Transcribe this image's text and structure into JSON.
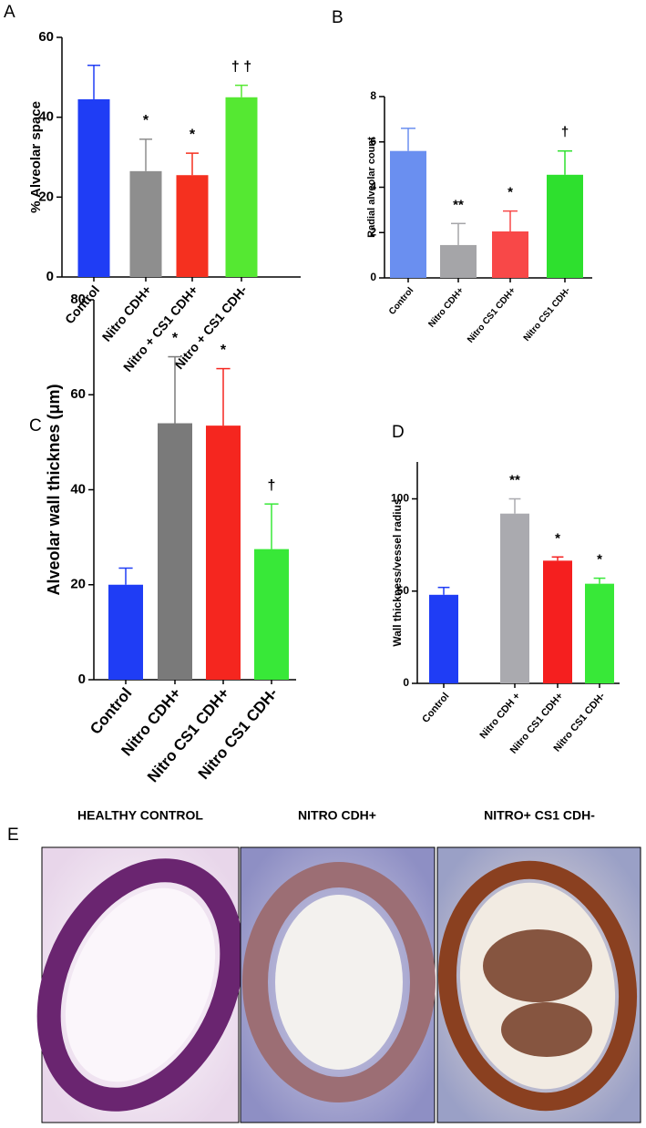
{
  "chart_data": [
    {
      "type": "bar",
      "panel": "A",
      "ylabel": "% Alveolar space",
      "categories": [
        "Control",
        "Nitro CDH+",
        "Nitro + CS1 CDH+",
        "Nitro + CS1 CDH-"
      ],
      "values": [
        44.5,
        26.5,
        25.5,
        45
      ],
      "errors": [
        8.5,
        8,
        5.5,
        3
      ],
      "annotations": [
        null,
        "*",
        "*",
        "† †"
      ],
      "colors": [
        "#1f3df5",
        "#8e8e8e",
        "#f5301f",
        "#55e832"
      ],
      "ylim": [
        0,
        60
      ],
      "yticks": [
        0,
        20,
        40,
        60
      ]
    },
    {
      "type": "bar",
      "panel": "B",
      "ylabel": "Radial alveolar count",
      "categories": [
        "Control",
        "Nitro CDH+",
        "Nitro CS1 CDH+",
        "Nitro CS1 CDH-"
      ],
      "values": [
        5.6,
        1.45,
        2.05,
        4.55
      ],
      "errors": [
        1.0,
        0.95,
        0.9,
        1.05
      ],
      "annotations": [
        null,
        "**",
        "*",
        "†"
      ],
      "colors": [
        "#6a8ff0",
        "#a5a5a8",
        "#f84848",
        "#2ee02e"
      ],
      "ylim": [
        0,
        8
      ],
      "yticks": [
        0,
        2,
        4,
        6,
        8
      ]
    },
    {
      "type": "bar",
      "panel": "C",
      "ylabel": "Alveolar wall thicknes (μm)",
      "categories": [
        "Control",
        "Nitro CDH+",
        "Nitro CS1 CDH+",
        "Nitro CS1 CDH-"
      ],
      "values": [
        20,
        54,
        53.5,
        27.5
      ],
      "errors": [
        3.5,
        14,
        12,
        9.5
      ],
      "annotations": [
        null,
        "*",
        "*",
        "†"
      ],
      "colors": [
        "#1f3df5",
        "#7a7a7a",
        "#f5261f",
        "#38e838"
      ],
      "ylim": [
        0,
        80
      ],
      "yticks": [
        0,
        20,
        40,
        60,
        80
      ]
    },
    {
      "type": "bar",
      "panel": "D",
      "ylabel": "Wall thickness/vessel radius",
      "categories": [
        "Control",
        "Nitro CDH +",
        "Nitro CS1 CDH+",
        "Nitro CS1 CDH-"
      ],
      "values": [
        48,
        92,
        66.5,
        54
      ],
      "errors": [
        4,
        8,
        2,
        3
      ],
      "annotations": [
        null,
        "**",
        "*",
        "*"
      ],
      "colors": [
        "#1f3df5",
        "#aaaaaf",
        "#f51f1f",
        "#38e838"
      ],
      "ylim": [
        0,
        120
      ],
      "yticks": [
        0,
        50,
        100
      ]
    }
  ],
  "figure_e": {
    "panel": "E",
    "images": [
      {
        "title": "HEALTHY CONTROL"
      },
      {
        "title": "NITRO CDH+"
      },
      {
        "title": "NITRO+ CS1 CDH-"
      }
    ]
  }
}
